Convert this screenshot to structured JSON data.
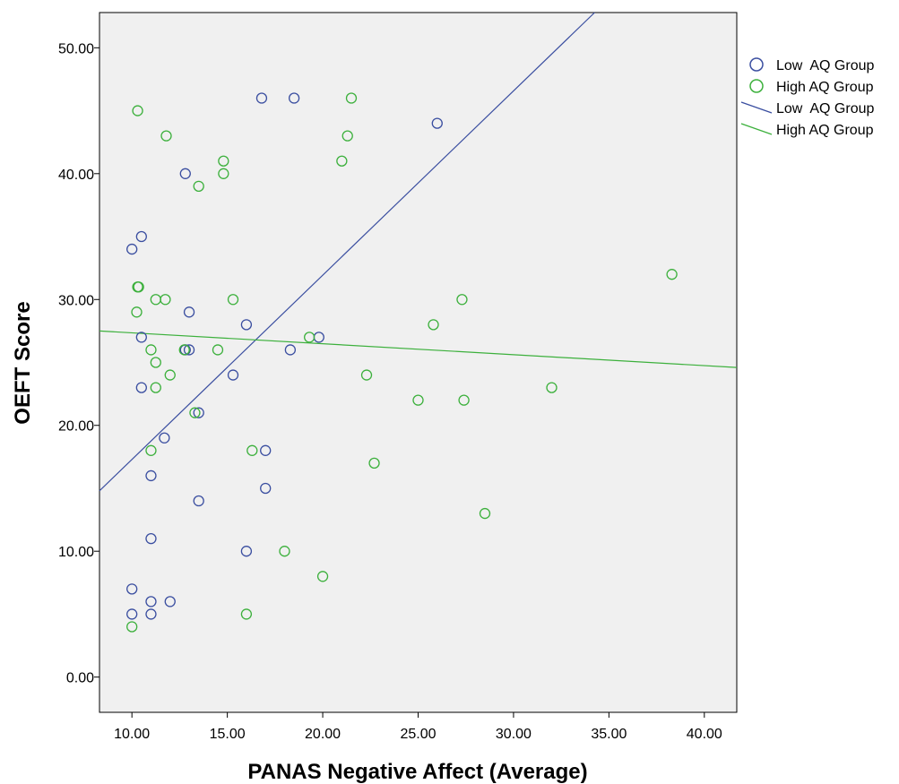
{
  "chart_data": {
    "type": "scatter",
    "xlabel": "PANAS Negative Affect (Average)",
    "ylabel": "OEFT Score",
    "xlim": [
      8.3,
      41.7
    ],
    "ylim": [
      -2.8,
      52.8
    ],
    "xticks": [
      10,
      15,
      20,
      25,
      30,
      35,
      40
    ],
    "yticks": [
      0,
      10,
      20,
      30,
      40,
      50
    ],
    "xtick_labels": [
      "10.00",
      "15.00",
      "20.00",
      "25.00",
      "30.00",
      "35.00",
      "40.00"
    ],
    "ytick_labels": [
      "0.00",
      "10.00",
      "20.00",
      "30.00",
      "40.00",
      "50.00"
    ],
    "grid": false,
    "plot_background": "#f0f0f0",
    "legend_position": "right",
    "series": [
      {
        "name": "Low AQ Group",
        "color": "#3a4ea0",
        "marker": "open-circle",
        "points": [
          [
            16.8,
            46
          ],
          [
            18.5,
            46
          ],
          [
            26.0,
            44
          ],
          [
            12.8,
            40
          ],
          [
            10.5,
            35
          ],
          [
            10.0,
            34
          ],
          [
            13.0,
            29
          ],
          [
            16.0,
            28
          ],
          [
            10.5,
            27
          ],
          [
            19.8,
            27
          ],
          [
            12.8,
            26
          ],
          [
            13.0,
            26
          ],
          [
            18.3,
            26
          ],
          [
            15.3,
            24
          ],
          [
            10.5,
            23
          ],
          [
            13.5,
            21
          ],
          [
            11.7,
            19
          ],
          [
            17.0,
            18
          ],
          [
            11.0,
            16
          ],
          [
            17.0,
            15
          ],
          [
            13.5,
            14
          ],
          [
            11.0,
            11
          ],
          [
            16.0,
            10
          ],
          [
            10.0,
            7
          ],
          [
            11.0,
            6
          ],
          [
            12.0,
            6
          ],
          [
            10.0,
            5
          ],
          [
            11.0,
            5
          ]
        ]
      },
      {
        "name": "High AQ Group",
        "color": "#3cb03c",
        "marker": "open-circle",
        "points": [
          [
            21.5,
            46
          ],
          [
            10.3,
            45
          ],
          [
            11.8,
            43
          ],
          [
            21.3,
            43
          ],
          [
            14.8,
            41
          ],
          [
            21.0,
            41
          ],
          [
            14.8,
            40
          ],
          [
            13.5,
            39
          ],
          [
            38.3,
            32
          ],
          [
            10.3,
            31
          ],
          [
            10.35,
            31
          ],
          [
            11.25,
            30
          ],
          [
            11.75,
            30
          ],
          [
            15.3,
            30
          ],
          [
            27.3,
            30
          ],
          [
            10.25,
            29
          ],
          [
            25.8,
            28
          ],
          [
            19.3,
            27
          ],
          [
            11.0,
            26
          ],
          [
            12.75,
            26
          ],
          [
            14.5,
            26
          ],
          [
            11.25,
            25
          ],
          [
            12.0,
            24
          ],
          [
            22.3,
            24
          ],
          [
            11.25,
            23
          ],
          [
            32.0,
            23
          ],
          [
            25.0,
            22
          ],
          [
            27.4,
            22
          ],
          [
            13.3,
            21
          ],
          [
            11.0,
            18
          ],
          [
            16.3,
            18
          ],
          [
            22.7,
            17
          ],
          [
            28.5,
            13
          ],
          [
            18.0,
            10
          ],
          [
            20.0,
            8
          ],
          [
            16.0,
            5
          ],
          [
            10.0,
            4
          ]
        ]
      }
    ],
    "fit_lines": [
      {
        "name": "Low AQ Group",
        "color": "#3a4ea0",
        "x": [
          8.3,
          34.25
        ],
        "y": [
          14.8,
          52.8
        ]
      },
      {
        "name": "High AQ Group",
        "color": "#3cb03c",
        "x": [
          8.3,
          41.7
        ],
        "y": [
          27.5,
          24.6
        ]
      }
    ],
    "legend": [
      {
        "label": "Low  AQ Group",
        "kind": "marker",
        "color": "#3a4ea0"
      },
      {
        "label": "High AQ Group",
        "kind": "marker",
        "color": "#3cb03c"
      },
      {
        "label": "Low  AQ Group",
        "kind": "line",
        "color": "#3a4ea0"
      },
      {
        "label": "High AQ Group",
        "kind": "line",
        "color": "#3cb03c"
      }
    ]
  }
}
